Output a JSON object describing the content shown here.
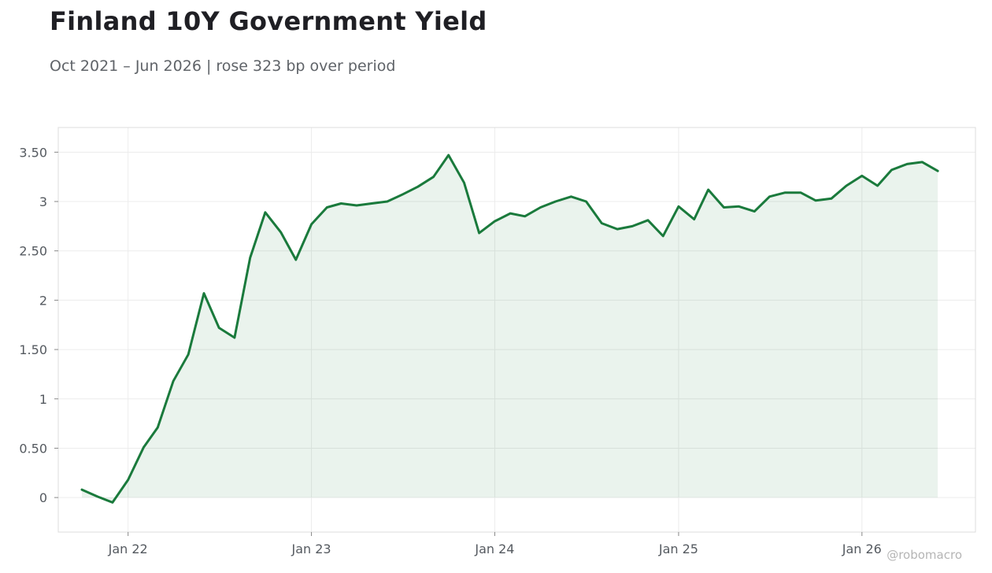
{
  "title": "Finland 10Y Government Yield",
  "subtitle": "Oct 2021 – Jun 2026 | rose 323 bp over period",
  "watermark": "@robomacro",
  "colors": {
    "line": "#1a7a3c",
    "fill": "#1a7a3c",
    "grid": "#ececec",
    "frame": "#dddddd"
  },
  "chart_data": {
    "type": "area",
    "title": "Finland 10Y Government Yield",
    "xlabel": "",
    "ylabel": "",
    "xlim": [
      "2021-08-15",
      "2026-08-15"
    ],
    "ylim": [
      -0.35,
      3.75
    ],
    "grid": true,
    "x_ticks": [
      {
        "date": "2022-01-01",
        "label": "Jan 22"
      },
      {
        "date": "2023-01-01",
        "label": "Jan 23"
      },
      {
        "date": "2024-01-01",
        "label": "Jan 24"
      },
      {
        "date": "2025-01-01",
        "label": "Jan 25"
      },
      {
        "date": "2026-01-01",
        "label": "Jan 26"
      }
    ],
    "y_ticks": [
      {
        "value": 0,
        "label": "0"
      },
      {
        "value": 0.5,
        "label": "0.50"
      },
      {
        "value": 1,
        "label": "1"
      },
      {
        "value": 1.5,
        "label": "1.50"
      },
      {
        "value": 2,
        "label": "2"
      },
      {
        "value": 2.5,
        "label": "2.50"
      },
      {
        "value": 3,
        "label": "3"
      },
      {
        "value": 3.5,
        "label": "3.50"
      }
    ],
    "series": [
      {
        "x": [
          "2021-10-01",
          "2021-11-01",
          "2021-12-01",
          "2022-01-01",
          "2022-02-01",
          "2022-03-01",
          "2022-04-01",
          "2022-05-01",
          "2022-06-01",
          "2022-07-01",
          "2022-08-01",
          "2022-09-01",
          "2022-10-01",
          "2022-11-01",
          "2022-12-01",
          "2023-01-01",
          "2023-02-01",
          "2023-03-01",
          "2023-04-01",
          "2023-05-01",
          "2023-06-01",
          "2023-07-01",
          "2023-08-01",
          "2023-09-01",
          "2023-10-01",
          "2023-11-01",
          "2023-12-01",
          "2024-01-01",
          "2024-02-01",
          "2024-03-01",
          "2024-04-01",
          "2024-05-01",
          "2024-06-01",
          "2024-07-01",
          "2024-08-01",
          "2024-09-01",
          "2024-10-01",
          "2024-11-01",
          "2024-12-01",
          "2025-01-01",
          "2025-02-01",
          "2025-03-01",
          "2025-04-01",
          "2025-05-01",
          "2025-06-01",
          "2025-07-01",
          "2025-08-01",
          "2025-09-01",
          "2025-10-01",
          "2025-11-01",
          "2025-12-01",
          "2026-01-01",
          "2026-02-01",
          "2026-03-01",
          "2026-04-01",
          "2026-05-01",
          "2026-06-01"
        ],
        "y": [
          0.08,
          0.01,
          -0.05,
          0.18,
          0.51,
          0.71,
          1.18,
          1.45,
          2.07,
          1.72,
          1.62,
          2.43,
          2.89,
          2.69,
          2.41,
          2.77,
          2.94,
          2.98,
          2.96,
          2.98,
          3.0,
          3.07,
          3.15,
          3.25,
          3.47,
          3.19,
          2.68,
          2.8,
          2.88,
          2.85,
          2.94,
          3.0,
          3.05,
          3.0,
          2.78,
          2.72,
          2.75,
          2.81,
          2.65,
          2.95,
          2.82,
          3.12,
          2.94,
          2.95,
          2.9,
          3.05,
          3.09,
          3.09,
          3.01,
          3.03,
          3.16,
          3.26,
          3.16,
          3.32,
          3.38,
          3.4,
          3.31
        ]
      }
    ]
  }
}
